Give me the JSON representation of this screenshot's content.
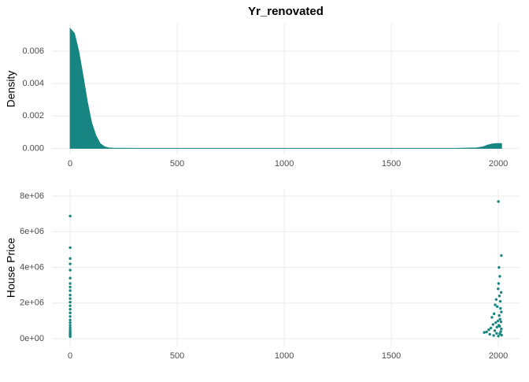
{
  "chart_data": [
    {
      "type": "area",
      "title": "Yr_renovated",
      "ylabel": "Density",
      "color": "#178582",
      "grid": true,
      "x": [
        0,
        20,
        40,
        60,
        80,
        100,
        120,
        140,
        160,
        180,
        200,
        300,
        1800,
        1900,
        1930,
        1950,
        1970,
        1990,
        2005,
        2015
      ],
      "values": [
        0.0074,
        0.0071,
        0.006,
        0.0045,
        0.0029,
        0.0016,
        0.0008,
        0.0003,
        0.0001,
        3e-05,
        1e-05,
        0,
        0,
        3e-05,
        0.0001,
        0.0002,
        0.00027,
        0.0003,
        0.0003,
        0.0003
      ],
      "xlim": [
        -85,
        2099
      ],
      "xticks": [
        0,
        500,
        1000,
        1500,
        2000
      ],
      "ylim": [
        -0.00037,
        0.0077
      ],
      "yticks": [
        {
          "value": 0,
          "label": "0.000"
        },
        {
          "value": 0.002,
          "label": "0.002"
        },
        {
          "value": 0.004,
          "label": "0.004"
        },
        {
          "value": 0.006,
          "label": "0.006"
        }
      ]
    },
    {
      "type": "scatter",
      "ylabel": "House Price",
      "color": "#178582",
      "grid": true,
      "x": [
        0,
        0,
        0,
        0,
        0,
        0,
        0,
        0,
        0,
        0,
        0,
        0,
        0,
        0,
        0,
        0,
        0,
        0,
        0,
        0,
        0,
        0,
        0,
        0,
        0,
        0,
        2000,
        2014,
        2003,
        2007,
        2001,
        1999,
        2013,
        2005,
        1990,
        2009,
        1985,
        1995,
        2010,
        2014,
        1980,
        2004,
        1970,
        2008,
        1998,
        2012,
        1988,
        1975,
        2002,
        2006,
        1993,
        1965,
        2014,
        1955,
        1983,
        2011,
        1945,
        1934,
        1992,
        2007,
        1960,
        2015,
        1978,
        2000
      ],
      "values": [
        6885000,
        5110000,
        4500000,
        4200000,
        3850000,
        3400000,
        3100000,
        2900000,
        2700000,
        2450000,
        2250000,
        2050000,
        1850000,
        1650000,
        1450000,
        1250000,
        1050000,
        900000,
        750000,
        620000,
        500000,
        400000,
        320000,
        250000,
        180000,
        120000,
        7700000,
        4670000,
        4000000,
        3500000,
        3100000,
        2800000,
        2600000,
        2400000,
        2200000,
        2100000,
        1900000,
        1800000,
        1700000,
        1500000,
        1400000,
        1300000,
        1200000,
        1100000,
        1000000,
        950000,
        900000,
        800000,
        750000,
        700000,
        650000,
        600000,
        550000,
        500000,
        450000,
        400000,
        380000,
        350000,
        300000,
        280000,
        250000,
        200000,
        180000,
        150000
      ],
      "xlim": [
        -85,
        2099
      ],
      "xticks": [
        0,
        500,
        1000,
        1500,
        2000
      ],
      "ylim": [
        -440000,
        8400000
      ],
      "yticks": [
        {
          "value": 0,
          "label": "0e+00"
        },
        {
          "value": 2000000,
          "label": "2e+06"
        },
        {
          "value": 4000000,
          "label": "4e+06"
        },
        {
          "value": 6000000,
          "label": "6e+06"
        },
        {
          "value": 8000000,
          "label": "8e+06"
        }
      ]
    }
  ]
}
